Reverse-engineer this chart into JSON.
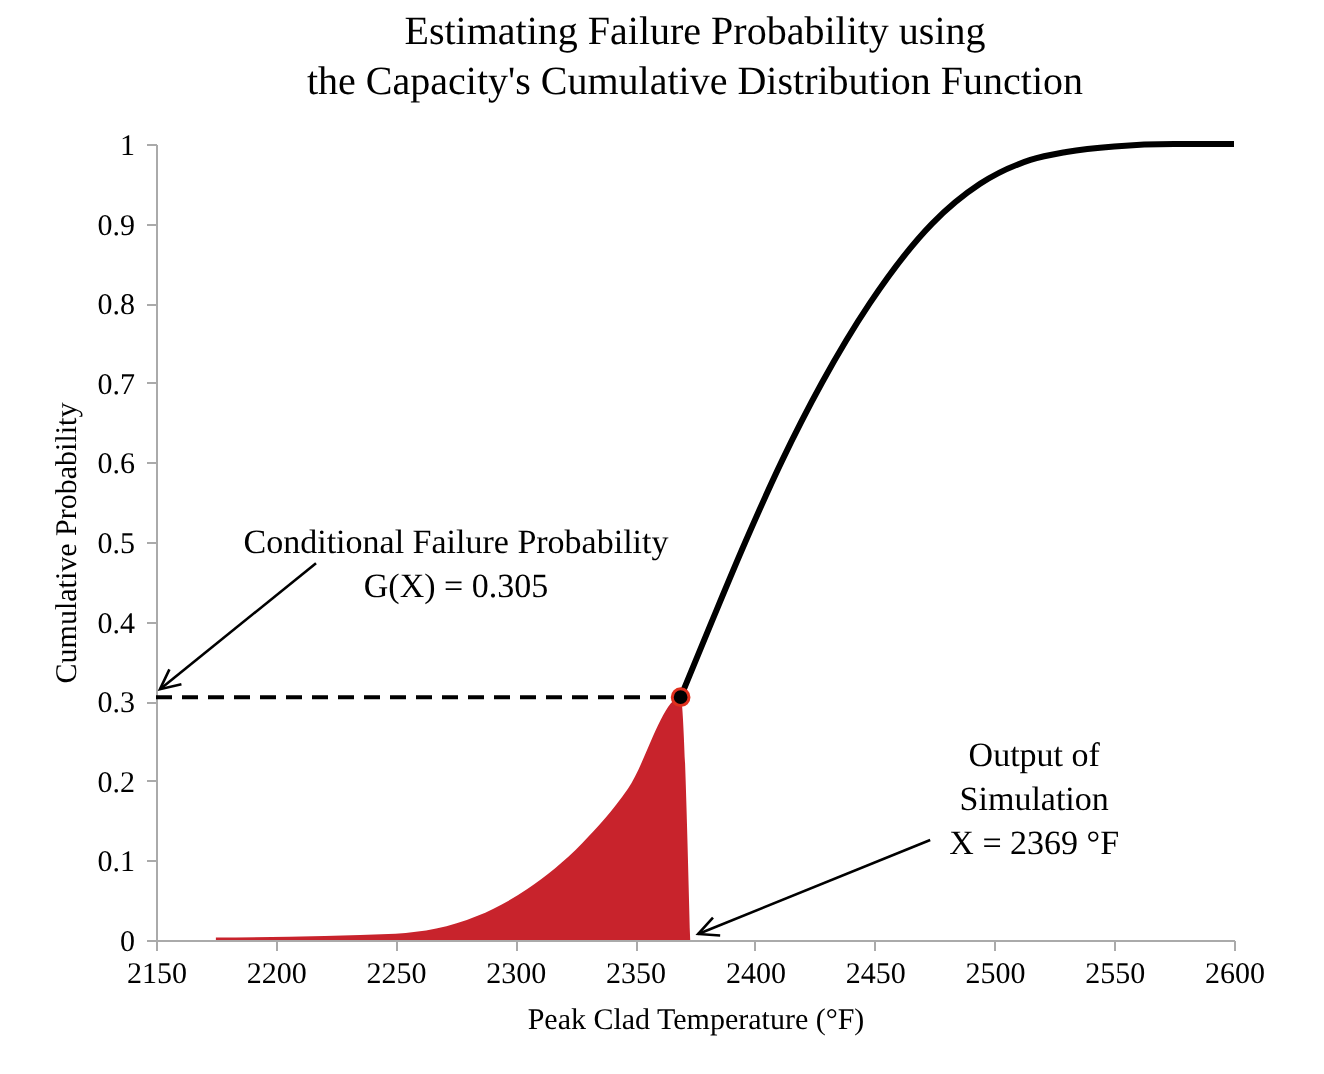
{
  "chart_data": {
    "type": "line",
    "title": [
      "Estimating Failure Probability using",
      "the Capacity's Cumulative Distribution Function"
    ],
    "xlabel": "Peak Clad Temperature (°F)",
    "ylabel": "Cumulative Probability",
    "xlim": [
      2150,
      2600
    ],
    "xticks": [
      2150,
      2200,
      2250,
      2300,
      2350,
      2400,
      2450,
      2500,
      2550,
      2600
    ],
    "ylim": [
      0,
      1
    ],
    "yticks": [
      0,
      0.1,
      0.2,
      0.3,
      0.4,
      0.5,
      0.6,
      0.7,
      0.8,
      0.9,
      1
    ],
    "grid": false,
    "series": [
      {
        "type": "area",
        "color": "#c8232c",
        "x": [
          2175,
          2250,
          2284,
          2305,
          2328,
          2347,
          2369,
          2373
        ],
        "values": [
          0.003,
          0.008,
          0.03,
          0.064,
          0.122,
          0.19,
          0.305,
          0
        ]
      },
      {
        "type": "line",
        "color": "#000000",
        "line_style": "solid",
        "x": [
          2369,
          2382,
          2396,
          2411,
          2428,
          2448,
          2474,
          2494,
          2515,
          2530,
          2550,
          2575,
          2600
        ],
        "values": [
          0.305,
          0.4,
          0.5,
          0.6,
          0.7,
          0.8,
          0.9,
          0.95,
          0.98,
          0.99,
          0.997,
          1,
          1
        ]
      },
      {
        "type": "line",
        "color": "#000000",
        "line_style": "dashed",
        "x": [
          2150,
          2369
        ],
        "values": [
          0.305,
          0.305
        ]
      },
      {
        "type": "scatter",
        "color": "#000000",
        "marker": "circle",
        "x": [
          2369
        ],
        "values": [
          0.305
        ]
      }
    ],
    "annotations": [
      {
        "text": "Conditional Failure Probability\nG(X) = 0.305",
        "x": 2150,
        "y": 0.305
      },
      {
        "text": "Output of\nSimulation\nX = 2369 °F",
        "x": 2373,
        "y": 0
      }
    ]
  }
}
